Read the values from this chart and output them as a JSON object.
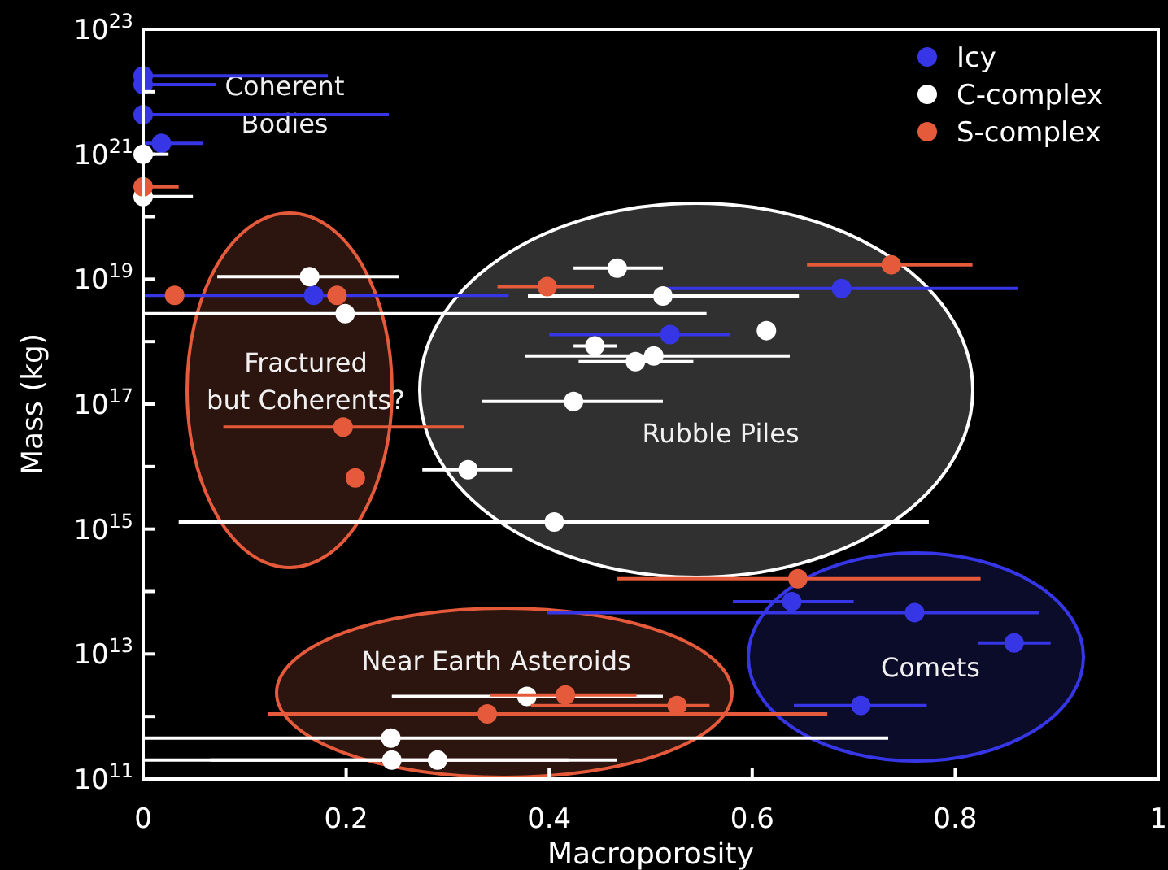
{
  "chart_data": {
    "type": "scatter",
    "xlabel": "Macroporosity",
    "ylabel": "Mass (kg)",
    "log": "y",
    "grid": false,
    "legend": "top right",
    "marker": "circle",
    "xlim": [
      0,
      1
    ],
    "xticks": [
      0,
      {
        "value": 0.2,
        "label": "0.2"
      },
      {
        "value": 0.4,
        "label": "0.4"
      },
      {
        "value": 0.6,
        "label": "0.6"
      },
      {
        "value": 0.8,
        "label": "0.8"
      },
      1
    ],
    "ylim": [
      100000000000.0,
      1e+23
    ],
    "yticks": [
      {
        "value": 100000000000.0,
        "label": "10$^{11}$"
      },
      {
        "value": 1000000000000.0,
        "label": null
      },
      {
        "value": 10000000000000.0,
        "label": "10$^{13}$"
      },
      {
        "value": 100000000000000.0,
        "label": null
      },
      {
        "value": 1000000000000000.0,
        "label": "10$^{15}$"
      },
      {
        "value": 1e+16,
        "label": null
      },
      {
        "value": 1e+17,
        "label": "10$^{17}$"
      },
      {
        "value": 1e+18,
        "label": null
      },
      {
        "value": 1e+19,
        "label": "10$^{19}$"
      },
      {
        "value": 1e+20,
        "label": null
      },
      {
        "value": 1e+21,
        "label": "10$^{21}$"
      },
      {
        "value": 1e+22,
        "label": null
      },
      {
        "value": 1e+23,
        "label": "10$^{23}$"
      }
    ],
    "annotations": [
      "Coherent\nBodies",
      "Fractured\nbut Coherents?",
      "Rubble Piles",
      "Near Earth Asteroids",
      "Comets"
    ],
    "series": [
      {
        "name": "Icy",
        "color": "#3636e6",
        "x": [
          0,
          0,
          0,
          0.018,
          0.168,
          0.688,
          0.519,
          0.639,
          0.76,
          0.858,
          0.707
        ],
        "values": [
          1.8e+22,
          1.3e+22,
          4.3e+21,
          1.5e+21,
          5.5e+18,
          7.1e+18,
          1.3e+18,
          69000000000000.0,
          46000000000000.0,
          15000000000000.0,
          1500000000000.0
        ],
        "xerrors": [
          [
            0,
            0.182
          ],
          [
            0,
            0.072
          ],
          [
            0,
            0.242
          ],
          [
            0,
            0.059
          ],
          [
            0,
            0.36
          ],
          [
            0.515,
            0.862
          ],
          [
            0.4,
            0.578
          ],
          [
            0.581,
            0.7
          ],
          [
            0.398,
            0.883
          ],
          [
            0.822,
            0.894
          ],
          [
            0.641,
            0.772
          ]
        ]
      },
      {
        "name": "C-complex",
        "color": "#ffffff",
        "x": [
          0,
          0,
          0.164,
          0.199,
          0.32,
          0.405,
          0.467,
          0.512,
          0.614,
          0.445,
          0.503,
          0.485,
          0.424,
          0.378,
          0.244,
          0.245,
          0.29
        ],
        "values": [
          1e+21,
          2.1e+20,
          1.1e+19,
          2.8e+18,
          8900000000000000.0,
          1300000000000000.0,
          1.5e+19,
          5.4e+18,
          1.5e+18,
          8.5e+17,
          5.9e+17,
          4.8e+17,
          1.1e+17,
          2100000000000.0,
          450000000000.0,
          200000000000.0,
          200000000000.0
        ],
        "xerrors": [
          [
            0,
            0.025
          ],
          [
            0,
            0.049
          ],
          [
            0.073,
            0.252
          ],
          [
            0,
            0.555
          ],
          [
            0.275,
            0.364
          ],
          [
            0.035,
            0.774
          ],
          [
            0.424,
            0.512
          ],
          [
            0.379,
            0.646
          ],
          null,
          [
            0.424,
            0.467
          ],
          [
            0.376,
            0.637
          ],
          [
            0.429,
            0.542
          ],
          [
            0.334,
            0.512
          ],
          [
            0.245,
            0.512
          ],
          [
            0,
            0.734
          ],
          [
            0,
            0.467
          ],
          [
            0.066,
            0.42
          ]
        ]
      },
      {
        "name": "S-complex",
        "color": "#e45a3a",
        "x": [
          0,
          0.031,
          0.191,
          0.197,
          0.209,
          0.398,
          0.737,
          0.645,
          0.416,
          0.339,
          0.526
        ],
        "values": [
          3e+20,
          5.5e+18,
          5.5e+18,
          4.3e+16,
          6600000000000000.0,
          7.6e+18,
          1.7e+19,
          160000000000000.0,
          2200000000000.0,
          1100000000000.0,
          1500000000000.0
        ],
        "xerrors": [
          [
            0,
            0.035
          ],
          null,
          null,
          [
            0.079,
            0.316
          ],
          null,
          [
            0.349,
            0.444
          ],
          [
            0.654,
            0.817
          ],
          [
            0.467,
            0.825
          ],
          [
            0.342,
            0.486
          ],
          [
            0.123,
            0.674
          ],
          [
            0.382,
            0.558
          ]
        ]
      }
    ]
  }
}
